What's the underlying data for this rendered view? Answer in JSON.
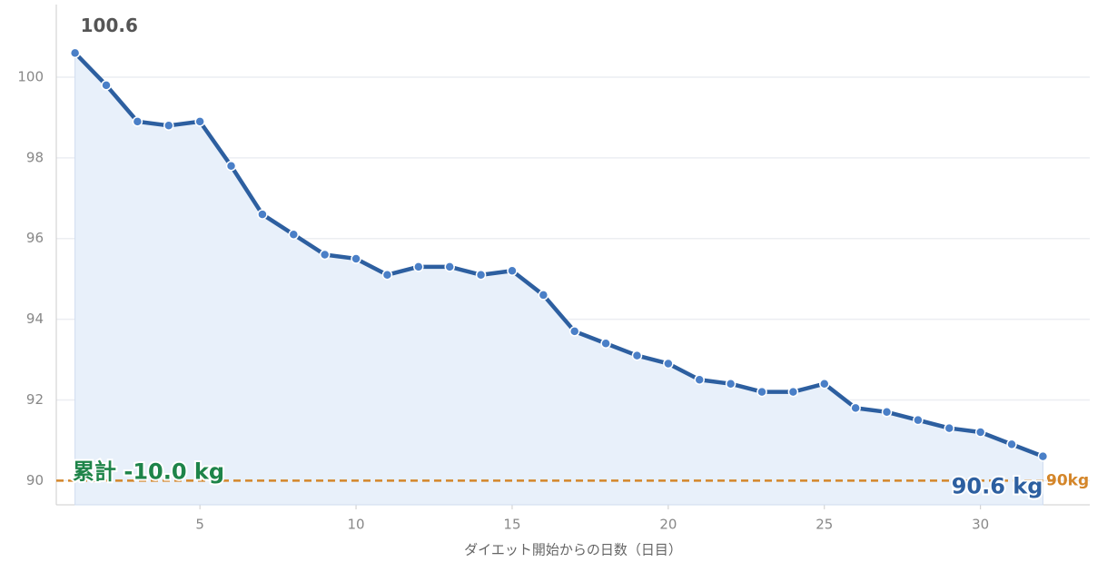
{
  "chart_data": {
    "type": "line",
    "x_label": "ダイエット開始からの日数（日目）",
    "x": [
      1,
      2,
      3,
      4,
      5,
      6,
      7,
      8,
      9,
      10,
      11,
      12,
      13,
      14,
      15,
      16,
      17,
      18,
      19,
      20,
      21,
      22,
      23,
      24,
      25,
      26,
      27,
      28,
      29,
      30,
      31,
      32
    ],
    "series": [
      {
        "color": "#2d5fa0",
        "values": [
          100.6,
          99.8,
          98.9,
          98.8,
          98.9,
          97.8,
          96.6,
          96.1,
          95.6,
          95.5,
          95.1,
          95.3,
          95.3,
          95.1,
          95.2,
          94.6,
          93.7,
          93.4,
          93.1,
          92.9,
          92.5,
          92.4,
          92.2,
          92.2,
          92.4,
          91.8,
          91.7,
          91.5,
          91.3,
          91.2,
          90.9,
          90.6
        ],
        "value_labels": [
          null,
          null,
          null,
          null,
          null,
          null,
          null,
          null,
          null,
          null,
          null,
          null,
          null,
          null,
          null,
          null,
          null,
          null,
          null,
          null,
          null,
          null,
          null,
          null,
          null,
          null,
          null,
          null,
          null,
          null,
          null,
          "90.6 kg"
        ]
      }
    ],
    "summary_label": "累計 -10.0 kg",
    "target": {
      "value": 90,
      "label": "90kg",
      "color": "#d4862a"
    },
    "xlim": [
      0.4,
      33.5
    ],
    "xticks": [
      5,
      10,
      15,
      20,
      25,
      30
    ],
    "ylim": [
      89.4,
      101.8
    ],
    "yticks": [
      90,
      92,
      94,
      96,
      98,
      100
    ],
    "grid": true
  }
}
